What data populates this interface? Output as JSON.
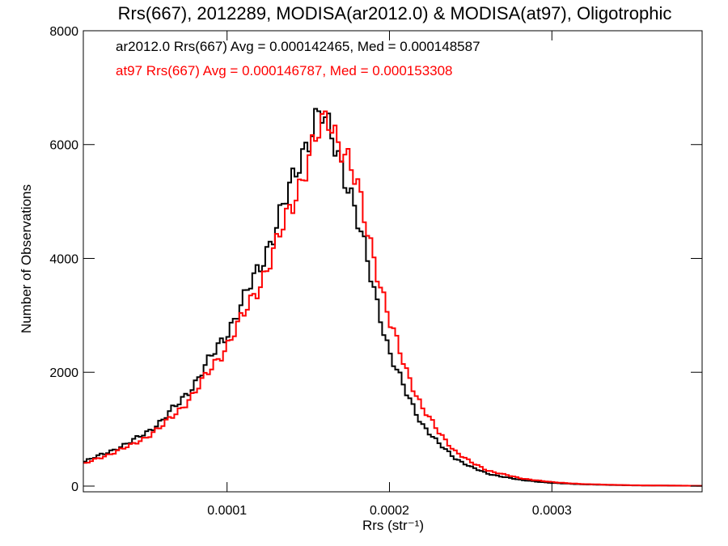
{
  "chart_data": {
    "type": "line",
    "title": "Rrs(667), 2012289, MODISA(ar2012.0) & MODISA(at97), Oligotrophic",
    "xlabel": "Rrs (str⁻¹)",
    "ylabel": "Number of Observations",
    "xlim": [
      1.15e-05,
      0.0003925
    ],
    "ylim": [
      -100,
      8000
    ],
    "x_ticks": [
      {
        "value": 0.0001,
        "label": "0.0001"
      },
      {
        "value": 0.0002,
        "label": "0.0002"
      },
      {
        "value": 0.0003,
        "label": "0.0003"
      }
    ],
    "y_ticks": [
      {
        "value": 0,
        "label": "0"
      },
      {
        "value": 2000,
        "label": "2000"
      },
      {
        "value": 4000,
        "label": "4000"
      },
      {
        "value": 6000,
        "label": "6000"
      },
      {
        "value": 8000,
        "label": "8000"
      }
    ],
    "grid": false,
    "legend_placement": "top-left",
    "annotations": [
      {
        "text": "ar2012.0 Rrs(667) Avg = 0.000142465, Med = 0.000148587",
        "color": "#000000"
      },
      {
        "text": "at97 Rrs(667) Avg = 0.000146787, Med = 0.000153308",
        "color": "#ff0000"
      }
    ],
    "series": [
      {
        "color": "#000000",
        "points": [
          [
            1.15e-05,
            420
          ],
          [
            2e-05,
            520
          ],
          [
            3e-05,
            640
          ],
          [
            4e-05,
            760
          ],
          [
            5e-05,
            940
          ],
          [
            6e-05,
            1150
          ],
          [
            7e-05,
            1450
          ],
          [
            8e-05,
            1800
          ],
          [
            9e-05,
            2250
          ],
          [
            0.0001,
            2700
          ],
          [
            0.00011,
            3250
          ],
          [
            0.00012,
            3850
          ],
          [
            0.00013,
            4550
          ],
          [
            0.00014,
            5300
          ],
          [
            0.000145,
            5750
          ],
          [
            0.00015,
            6150
          ],
          [
            0.000155,
            6450
          ],
          [
            0.000158,
            6550
          ],
          [
            0.00016,
            6350
          ],
          [
            0.000165,
            6100
          ],
          [
            0.00017,
            5700
          ],
          [
            0.000175,
            5300
          ],
          [
            0.00018,
            4700
          ],
          [
            0.000185,
            4100
          ],
          [
            0.00019,
            3500
          ],
          [
            0.000195,
            2950
          ],
          [
            0.0002,
            2350
          ],
          [
            0.00021,
            1650
          ],
          [
            0.00022,
            1100
          ],
          [
            0.00023,
            750
          ],
          [
            0.00024,
            500
          ],
          [
            0.00025,
            340
          ],
          [
            0.00026,
            220
          ],
          [
            0.00028,
            110
          ],
          [
            0.0003,
            55
          ],
          [
            0.00032,
            30
          ],
          [
            0.00035,
            12
          ],
          [
            0.0003925,
            5
          ]
        ]
      },
      {
        "color": "#ff0000",
        "points": [
          [
            1.15e-05,
            380
          ],
          [
            2e-05,
            480
          ],
          [
            3e-05,
            590
          ],
          [
            4e-05,
            700
          ],
          [
            5e-05,
            860
          ],
          [
            6e-05,
            1050
          ],
          [
            7e-05,
            1320
          ],
          [
            8e-05,
            1640
          ],
          [
            9e-05,
            2050
          ],
          [
            0.0001,
            2480
          ],
          [
            0.00011,
            2980
          ],
          [
            0.00012,
            3550
          ],
          [
            0.00013,
            4200
          ],
          [
            0.00014,
            4950
          ],
          [
            0.000145,
            5350
          ],
          [
            0.00015,
            5750
          ],
          [
            0.000155,
            6100
          ],
          [
            0.00016,
            6350
          ],
          [
            0.000163,
            6450
          ],
          [
            0.000167,
            6200
          ],
          [
            0.00017,
            6050
          ],
          [
            0.000175,
            5700
          ],
          [
            0.00018,
            5250
          ],
          [
            0.000185,
            4650
          ],
          [
            0.00019,
            4100
          ],
          [
            0.000195,
            3500
          ],
          [
            0.0002,
            2900
          ],
          [
            0.00021,
            2050
          ],
          [
            0.00022,
            1400
          ],
          [
            0.00023,
            950
          ],
          [
            0.00024,
            630
          ],
          [
            0.00025,
            420
          ],
          [
            0.00026,
            280
          ],
          [
            0.00028,
            140
          ],
          [
            0.0003,
            70
          ],
          [
            0.00032,
            35
          ],
          [
            0.00035,
            15
          ],
          [
            0.0003925,
            5
          ]
        ]
      }
    ]
  }
}
